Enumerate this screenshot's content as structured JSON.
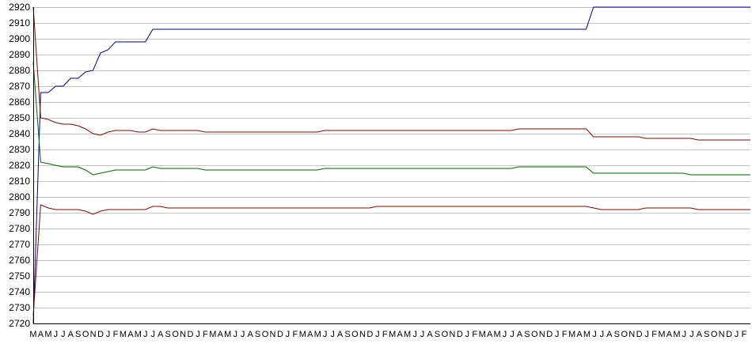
{
  "chart_data": {
    "type": "line",
    "title": "",
    "xlabel": "",
    "ylabel": "",
    "ylim": [
      2720,
      2920
    ],
    "y_ticks": [
      2720,
      2730,
      2740,
      2750,
      2760,
      2770,
      2780,
      2790,
      2800,
      2810,
      2820,
      2830,
      2840,
      2850,
      2860,
      2870,
      2880,
      2890,
      2900,
      2910,
      2920
    ],
    "grid": true,
    "legend": "none",
    "x_tick_labels_repeating": [
      "M",
      "A",
      "M",
      "J",
      "J",
      "A",
      "S",
      "O",
      "N",
      "D",
      "J",
      "F"
    ],
    "x_tick_label_count": 96,
    "x_points": 97,
    "series": [
      {
        "color": "#00008b",
        "values": [
          2720,
          2866,
          2866,
          2870,
          2870,
          2875,
          2875,
          2879,
          2880,
          2891,
          2893,
          2898,
          2898,
          2898,
          2898,
          2898,
          2906,
          2906,
          2906,
          2906,
          2906,
          2906,
          2906,
          2906,
          2906,
          2906,
          2906,
          2906,
          2906,
          2906,
          2906,
          2906,
          2906,
          2906,
          2906,
          2906,
          2906,
          2906,
          2906,
          2906,
          2906,
          2906,
          2906,
          2906,
          2906,
          2906,
          2906,
          2906,
          2906,
          2906,
          2906,
          2906,
          2906,
          2906,
          2906,
          2906,
          2906,
          2906,
          2906,
          2906,
          2906,
          2906,
          2906,
          2906,
          2906,
          2906,
          2906,
          2906,
          2906,
          2906,
          2906,
          2906,
          2906,
          2906,
          2906,
          2920,
          2920,
          2920,
          2920,
          2920,
          2920,
          2920,
          2920,
          2920,
          2920,
          2920,
          2920,
          2920,
          2920,
          2920,
          2920,
          2920,
          2920,
          2920,
          2920,
          2920,
          2920
        ]
      },
      {
        "color": "#8b0000",
        "values": [
          2920,
          2850,
          2849,
          2847,
          2846,
          2846,
          2845,
          2843,
          2840,
          2839,
          2841,
          2842,
          2842,
          2842,
          2841,
          2841,
          2843,
          2842,
          2842,
          2842,
          2842,
          2842,
          2842,
          2841,
          2841,
          2841,
          2841,
          2841,
          2841,
          2841,
          2841,
          2841,
          2841,
          2841,
          2841,
          2841,
          2841,
          2841,
          2841,
          2842,
          2842,
          2842,
          2842,
          2842,
          2842,
          2842,
          2842,
          2842,
          2842,
          2842,
          2842,
          2842,
          2842,
          2842,
          2842,
          2842,
          2842,
          2842,
          2842,
          2842,
          2842,
          2842,
          2842,
          2842,
          2842,
          2843,
          2843,
          2843,
          2843,
          2843,
          2843,
          2843,
          2843,
          2843,
          2843,
          2838,
          2838,
          2838,
          2838,
          2838,
          2838,
          2838,
          2837,
          2837,
          2837,
          2837,
          2837,
          2837,
          2837,
          2836,
          2836,
          2836,
          2836,
          2836,
          2836,
          2836,
          2836
        ]
      },
      {
        "color": "#006400",
        "values": [
          2885,
          2822,
          2821,
          2820,
          2819,
          2819,
          2819,
          2817,
          2814,
          2815,
          2816,
          2817,
          2817,
          2817,
          2817,
          2817,
          2819,
          2818,
          2818,
          2818,
          2818,
          2818,
          2818,
          2817,
          2817,
          2817,
          2817,
          2817,
          2817,
          2817,
          2817,
          2817,
          2817,
          2817,
          2817,
          2817,
          2817,
          2817,
          2817,
          2818,
          2818,
          2818,
          2818,
          2818,
          2818,
          2818,
          2818,
          2818,
          2818,
          2818,
          2818,
          2818,
          2818,
          2818,
          2818,
          2818,
          2818,
          2818,
          2818,
          2818,
          2818,
          2818,
          2818,
          2818,
          2818,
          2819,
          2819,
          2819,
          2819,
          2819,
          2819,
          2819,
          2819,
          2819,
          2819,
          2815,
          2815,
          2815,
          2815,
          2815,
          2815,
          2815,
          2815,
          2815,
          2815,
          2815,
          2815,
          2815,
          2814,
          2814,
          2814,
          2814,
          2814,
          2814,
          2814,
          2814,
          2814
        ]
      },
      {
        "color": "#8b0000",
        "values": [
          2725,
          2795,
          2793,
          2792,
          2792,
          2792,
          2792,
          2791,
          2789,
          2791,
          2792,
          2792,
          2792,
          2792,
          2792,
          2792,
          2794,
          2794,
          2793,
          2793,
          2793,
          2793,
          2793,
          2793,
          2793,
          2793,
          2793,
          2793,
          2793,
          2793,
          2793,
          2793,
          2793,
          2793,
          2793,
          2793,
          2793,
          2793,
          2793,
          2793,
          2793,
          2793,
          2793,
          2793,
          2793,
          2793,
          2794,
          2794,
          2794,
          2794,
          2794,
          2794,
          2794,
          2794,
          2794,
          2794,
          2794,
          2794,
          2794,
          2794,
          2794,
          2794,
          2794,
          2794,
          2794,
          2794,
          2794,
          2794,
          2794,
          2794,
          2794,
          2794,
          2794,
          2794,
          2794,
          2793,
          2792,
          2792,
          2792,
          2792,
          2792,
          2792,
          2793,
          2793,
          2793,
          2793,
          2793,
          2793,
          2793,
          2792,
          2792,
          2792,
          2792,
          2792,
          2792,
          2792,
          2792
        ]
      }
    ]
  }
}
